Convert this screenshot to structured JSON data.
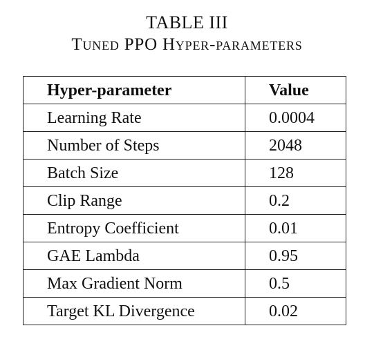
{
  "caption": {
    "number": "TABLE III",
    "title": "Tuned PPO Hyper-parameters"
  },
  "table": {
    "headers": [
      "Hyper-parameter",
      "Value"
    ],
    "rows": [
      [
        "Learning Rate",
        "0.0004"
      ],
      [
        "Number of Steps",
        "2048"
      ],
      [
        "Batch Size",
        "128"
      ],
      [
        "Clip Range",
        "0.2"
      ],
      [
        "Entropy Coefficient",
        "0.01"
      ],
      [
        "GAE Lambda",
        "0.95"
      ],
      [
        "Max Gradient Norm",
        "0.5"
      ],
      [
        "Target KL Divergence",
        "0.02"
      ]
    ]
  }
}
